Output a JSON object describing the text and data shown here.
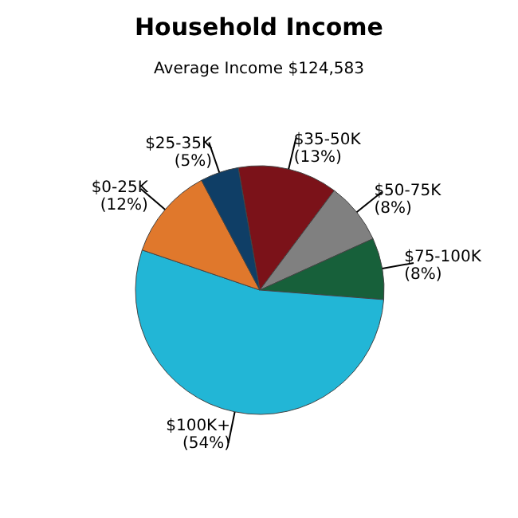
{
  "chart_data": {
    "type": "pie",
    "title": "Household Income",
    "subtitle": "Average Income  $124,583",
    "categories": [
      "$35-50K",
      "$50-75K",
      "$75-100K",
      "$100K+",
      "$0-25K",
      "$25-35K"
    ],
    "values": [
      13,
      8,
      8,
      54,
      12,
      5
    ],
    "colors": [
      "#7b1219",
      "#808080",
      "#17603a",
      "#22b6d6",
      "#e0782c",
      "#0f3e66"
    ],
    "value_labels": [
      "(13%)",
      "(8%)",
      "(8%)",
      "(54%)",
      "(12%)",
      "(5%)"
    ]
  }
}
